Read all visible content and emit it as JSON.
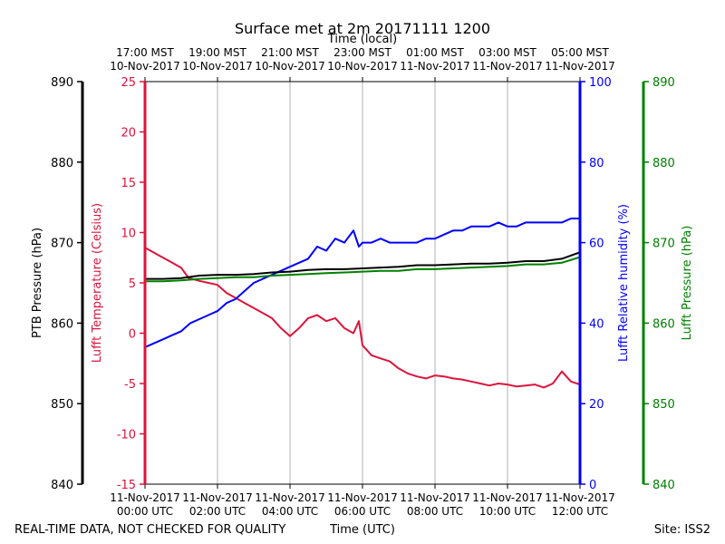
{
  "chart_data": {
    "type": "line",
    "title": "Surface met at 2m 20171111 1200",
    "top_axis": {
      "label": "Time (local)",
      "ticks": [
        {
          "line1": "17:00 MST",
          "line2": "10-Nov-2017"
        },
        {
          "line1": "19:00 MST",
          "line2": "10-Nov-2017"
        },
        {
          "line1": "21:00 MST",
          "line2": "10-Nov-2017"
        },
        {
          "line1": "23:00 MST",
          "line2": "10-Nov-2017"
        },
        {
          "line1": "01:00 MST",
          "line2": "11-Nov-2017"
        },
        {
          "line1": "03:00 MST",
          "line2": "11-Nov-2017"
        },
        {
          "line1": "05:00 MST",
          "line2": "11-Nov-2017"
        }
      ]
    },
    "bottom_axis": {
      "label": "Time (UTC)",
      "xlim": [
        0,
        12
      ],
      "ticks": [
        {
          "x": 0,
          "line1": "11-Nov-2017",
          "line2": "00:00 UTC"
        },
        {
          "x": 2,
          "line1": "11-Nov-2017",
          "line2": "02:00 UTC"
        },
        {
          "x": 4,
          "line1": "11-Nov-2017",
          "line2": "04:00 UTC"
        },
        {
          "x": 6,
          "line1": "11-Nov-2017",
          "line2": "06:00 UTC"
        },
        {
          "x": 8,
          "line1": "11-Nov-2017",
          "line2": "08:00 UTC"
        },
        {
          "x": 10,
          "line1": "11-Nov-2017",
          "line2": "10:00 UTC"
        },
        {
          "x": 12,
          "line1": "11-Nov-2017",
          "line2": "12:00 UTC"
        }
      ]
    },
    "axes": {
      "ptb_pressure": {
        "label": "PTB Pressure (hPa)",
        "color": "#000000",
        "ylim": [
          840,
          890
        ],
        "ticks": [
          840,
          850,
          860,
          870,
          880,
          890
        ]
      },
      "temperature": {
        "label": "Lufft Temperature (Celsius)",
        "color": "#dc143c",
        "ylim": [
          -15,
          25
        ],
        "ticks": [
          -15,
          -10,
          -5,
          0,
          5,
          10,
          15,
          20,
          25
        ]
      },
      "humidity": {
        "label": "Lufft Relative humidity (%)",
        "color": "#0000ff",
        "ylim": [
          0,
          100
        ],
        "ticks": [
          0,
          20,
          40,
          60,
          80,
          100
        ]
      },
      "lufft_pressure": {
        "label": "Lufft Pressure (hPa)",
        "color": "#008000",
        "ylim": [
          840,
          890
        ],
        "ticks": [
          840,
          850,
          860,
          870,
          880,
          890
        ]
      }
    },
    "series": [
      {
        "name": "Lufft Temperature",
        "axis": "temperature",
        "color": "#dc143c",
        "x": [
          0,
          0.25,
          0.5,
          0.75,
          1.0,
          1.2,
          1.5,
          1.75,
          2.0,
          2.25,
          2.5,
          2.75,
          3.0,
          3.25,
          3.5,
          3.75,
          4.0,
          4.25,
          4.5,
          4.75,
          5.0,
          5.25,
          5.5,
          5.75,
          5.9,
          6.0,
          6.25,
          6.5,
          6.75,
          7.0,
          7.25,
          7.5,
          7.75,
          8.0,
          8.25,
          8.5,
          8.75,
          9.0,
          9.25,
          9.5,
          9.75,
          10.0,
          10.25,
          10.5,
          10.75,
          11.0,
          11.25,
          11.5,
          11.75,
          12.0
        ],
        "y": [
          8.5,
          8.0,
          7.5,
          7.0,
          6.5,
          5.5,
          5.2,
          5.0,
          4.8,
          4.0,
          3.5,
          3.0,
          2.5,
          2.0,
          1.5,
          0.5,
          -0.3,
          0.5,
          1.5,
          1.8,
          1.2,
          1.5,
          0.5,
          0.0,
          1.2,
          -1.2,
          -2.2,
          -2.5,
          -2.8,
          -3.5,
          -4.0,
          -4.3,
          -4.5,
          -4.2,
          -4.3,
          -4.5,
          -4.6,
          -4.8,
          -5.0,
          -5.2,
          -5.0,
          -5.1,
          -5.3,
          -5.2,
          -5.1,
          -5.4,
          -5.0,
          -3.8,
          -4.8,
          -5.1
        ]
      },
      {
        "name": "Lufft Relative humidity",
        "axis": "humidity",
        "color": "#0000ff",
        "x": [
          0,
          0.25,
          0.5,
          0.75,
          1.0,
          1.25,
          1.5,
          1.75,
          2.0,
          2.25,
          2.5,
          2.75,
          3.0,
          3.25,
          3.5,
          3.75,
          4.0,
          4.25,
          4.5,
          4.75,
          5.0,
          5.25,
          5.5,
          5.75,
          5.9,
          6.0,
          6.25,
          6.5,
          6.75,
          7.0,
          7.25,
          7.5,
          7.75,
          8.0,
          8.25,
          8.5,
          8.75,
          9.0,
          9.25,
          9.5,
          9.75,
          10.0,
          10.25,
          10.5,
          10.75,
          11.0,
          11.25,
          11.5,
          11.75,
          12.0
        ],
        "y": [
          34,
          35,
          36,
          37,
          38,
          40,
          41,
          42,
          43,
          45,
          46,
          48,
          50,
          51,
          52,
          53,
          54,
          55,
          56,
          59,
          58,
          61,
          60,
          63,
          59,
          60,
          60,
          61,
          60,
          60,
          60,
          60,
          61,
          61,
          62,
          63,
          63,
          64,
          64,
          64,
          65,
          64,
          64,
          65,
          65,
          65,
          65,
          65,
          66,
          66
        ]
      },
      {
        "name": "PTB Pressure",
        "axis": "ptb_pressure",
        "color": "#000000",
        "x": [
          0,
          0.5,
          1.0,
          1.5,
          2.0,
          2.5,
          3.0,
          3.5,
          4.0,
          4.5,
          5.0,
          5.5,
          6.0,
          6.5,
          7.0,
          7.5,
          8.0,
          8.5,
          9.0,
          9.5,
          10.0,
          10.5,
          11.0,
          11.5,
          12.0
        ],
        "y": [
          865.5,
          865.5,
          865.6,
          865.9,
          866.0,
          866.0,
          866.1,
          866.3,
          866.4,
          866.6,
          866.7,
          866.7,
          866.8,
          866.9,
          867.0,
          867.2,
          867.2,
          867.3,
          867.4,
          867.4,
          867.5,
          867.7,
          867.7,
          868.0,
          868.8
        ]
      },
      {
        "name": "Lufft Pressure",
        "axis": "lufft_pressure",
        "color": "#008000",
        "x": [
          0,
          0.5,
          1.0,
          1.5,
          2.0,
          2.5,
          3.0,
          3.5,
          4.0,
          4.5,
          5.0,
          5.5,
          6.0,
          6.5,
          7.0,
          7.5,
          8.0,
          8.5,
          9.0,
          9.5,
          10.0,
          10.5,
          11.0,
          11.5,
          12.0
        ],
        "y": [
          865.2,
          865.2,
          865.3,
          865.5,
          865.6,
          865.7,
          865.7,
          865.9,
          866.0,
          866.1,
          866.2,
          866.3,
          866.4,
          866.5,
          866.5,
          866.7,
          866.7,
          866.8,
          866.9,
          867.0,
          867.1,
          867.3,
          867.3,
          867.5,
          868.2
        ]
      }
    ],
    "gridlines": "vertical"
  },
  "footer": {
    "quality_note": "REAL-TIME DATA, NOT CHECKED FOR QUALITY",
    "site": "Site: ISS2"
  }
}
